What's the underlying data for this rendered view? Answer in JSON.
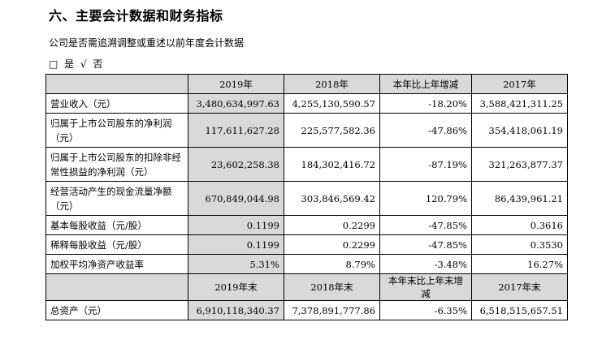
{
  "heading": "六、主要会计数据和财务指标",
  "question": "公司是否需追溯调整或重述以前年度会计数据",
  "options": {
    "box": "□",
    "yes": "是",
    "check": "√",
    "no": "否"
  },
  "table": {
    "header": [
      "",
      "2019年",
      "2018年",
      "本年比上年增减",
      "2017年"
    ],
    "rows": [
      {
        "label": "营业收入（元）",
        "values": [
          "3,480,634,997.63",
          "4,255,130,590.57",
          "-18.20%",
          "3,588,421,311.25"
        ]
      },
      {
        "label": "归属于上市公司股东的净利润（元）",
        "values": [
          "117,611,627.28",
          "225,577,582.36",
          "-47.86%",
          "354,418,061.19"
        ]
      },
      {
        "label": "归属于上市公司股东的扣除非经常性损益的净利润（元）",
        "values": [
          "23,602,258.38",
          "184,302,416.72",
          "-87.19%",
          "321,263,877.37"
        ]
      },
      {
        "label": "经营活动产生的现金流量净额（元）",
        "values": [
          "670,849,044.98",
          "303,846,569.42",
          "120.79%",
          "86,439,961.21"
        ]
      },
      {
        "label": "基本每股收益（元/股）",
        "values": [
          "0.1199",
          "0.2299",
          "-47.85%",
          "0.3616"
        ]
      },
      {
        "label": "稀释每股收益（元/股）",
        "values": [
          "0.1199",
          "0.2299",
          "-47.85%",
          "0.3530"
        ]
      },
      {
        "label": "加权平均净资产收益率",
        "values": [
          "5.31%",
          "8.79%",
          "-3.48%",
          "16.27%"
        ]
      }
    ],
    "header2": [
      "",
      "2019年末",
      "2018年末",
      "本年末比上年末增减",
      "2017年末"
    ],
    "rows2": [
      {
        "label": "总资产（元）",
        "values": [
          "6,910,118,340.37",
          "7,378,891,777.86",
          "-6.35%",
          "6,518,515,657.51"
        ]
      }
    ]
  }
}
